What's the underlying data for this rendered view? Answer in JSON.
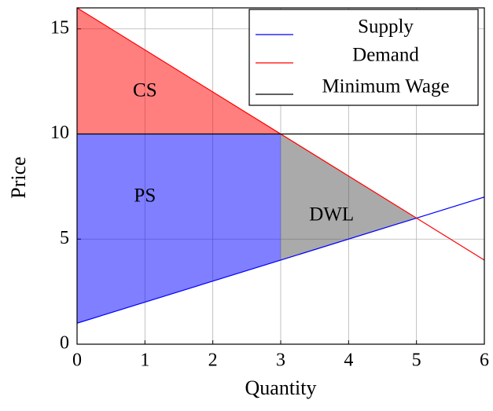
{
  "chart_data": {
    "type": "line",
    "x_label": "Quantity",
    "y_label": "Price",
    "xlim": [
      0,
      6
    ],
    "ylim": [
      0,
      16
    ],
    "xticks": [
      0,
      1,
      2,
      3,
      4,
      5,
      6
    ],
    "yticks": [
      0,
      5,
      10,
      15
    ],
    "grid": true,
    "legend": "upper right",
    "series": [
      {
        "name": "Supply",
        "color": "#0000ff",
        "x": [
          0,
          6
        ],
        "values": [
          1,
          7
        ]
      },
      {
        "name": "Demand",
        "color": "#ff0000",
        "x": [
          0,
          6
        ],
        "values": [
          16,
          4
        ]
      },
      {
        "name": "Minimum Wage",
        "color": "#000000",
        "x": [
          0,
          6
        ],
        "values": [
          10,
          10
        ]
      }
    ],
    "areas": [
      {
        "label": "CS",
        "color": "#ff0000",
        "x": [
          0,
          3,
          0
        ],
        "y": [
          16,
          10,
          10
        ]
      },
      {
        "label": "PS",
        "color": "#0000ff",
        "x": [
          0,
          3,
          3,
          0
        ],
        "y": [
          10,
          10,
          4,
          1
        ]
      },
      {
        "label": "DWL",
        "color": "#555555",
        "x": [
          3,
          5,
          3
        ],
        "y": [
          10,
          6,
          4
        ]
      }
    ]
  }
}
